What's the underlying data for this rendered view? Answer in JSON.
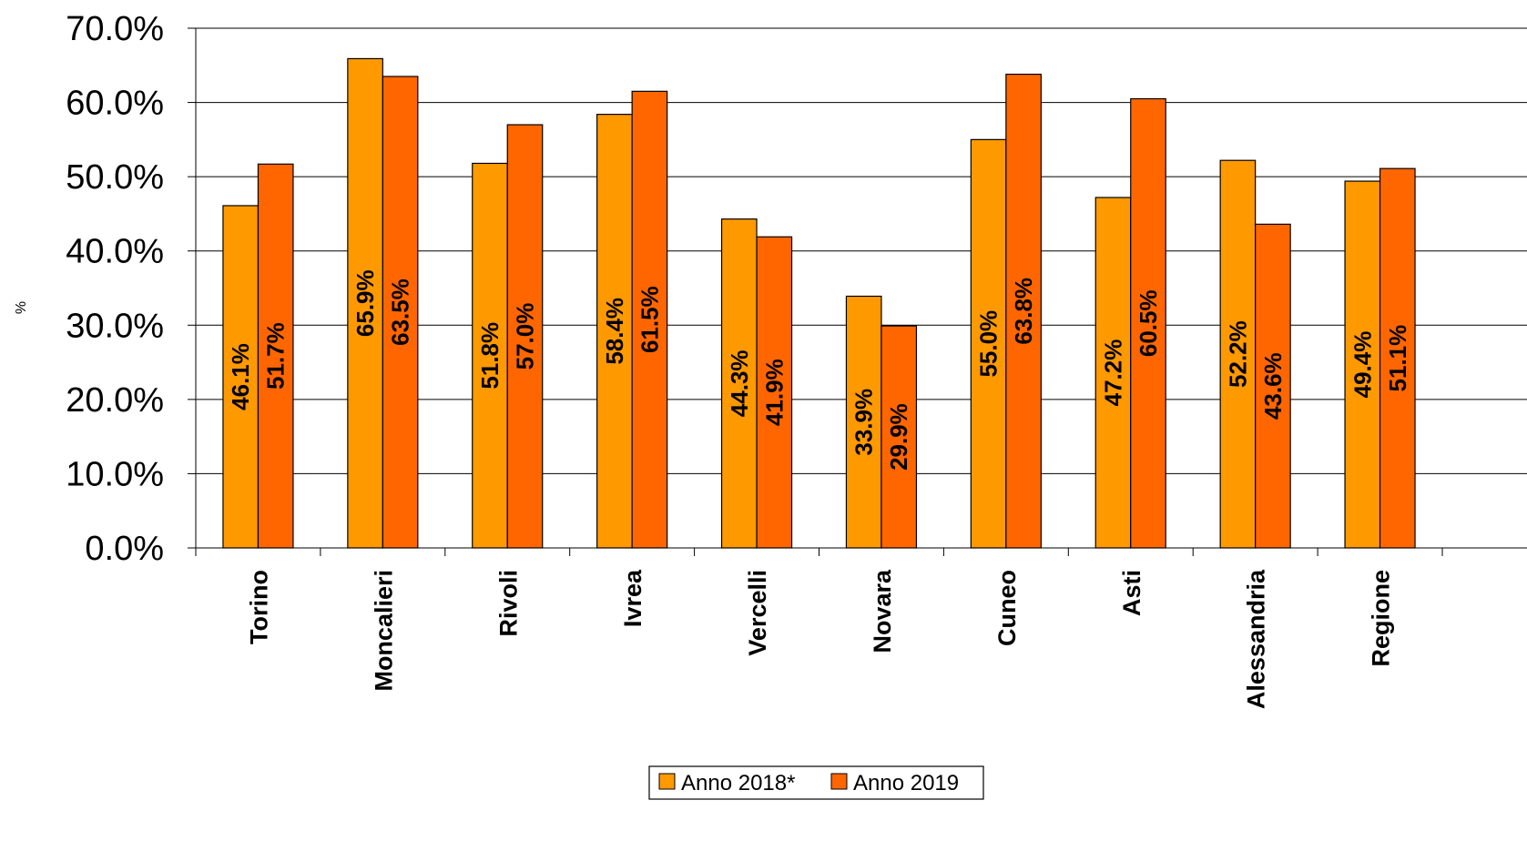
{
  "chart_data": {
    "type": "bar",
    "title": "",
    "xlabel": "",
    "ylabel": "%",
    "ylim": [
      0,
      70
    ],
    "yticks": [
      "0.0%",
      "10.0%",
      "20.0%",
      "30.0%",
      "40.0%",
      "50.0%",
      "60.0%",
      "70.0%"
    ],
    "grid": "horizontal",
    "legend_position": "bottom",
    "categories": [
      "Torino",
      "Moncalieri",
      "Rivoli",
      "Ivrea",
      "Vercelli",
      "Novara",
      "Cuneo",
      "Asti",
      "Alessandria",
      "Regione"
    ],
    "series": [
      {
        "name": "Anno 2018*",
        "color": "#FF9900",
        "values": [
          46.1,
          65.9,
          51.8,
          58.4,
          44.3,
          33.9,
          55.0,
          47.2,
          52.2,
          49.4
        ],
        "labels": [
          "46.1%",
          "65.9%",
          "51.8%",
          "58.4%",
          "44.3%",
          "33.9%",
          "55.0%",
          "47.2%",
          "52.2%",
          "49.4%"
        ]
      },
      {
        "name": "Anno 2019",
        "color": "#FF6600",
        "values": [
          51.7,
          63.5,
          57.0,
          61.5,
          41.9,
          29.9,
          63.8,
          60.5,
          43.6,
          51.1
        ],
        "labels": [
          "51.7%",
          "63.5%",
          "57.0%",
          "61.5%",
          "41.9%",
          "29.9%",
          "63.8%",
          "60.5%",
          "43.6%",
          "51.1%"
        ]
      }
    ]
  }
}
